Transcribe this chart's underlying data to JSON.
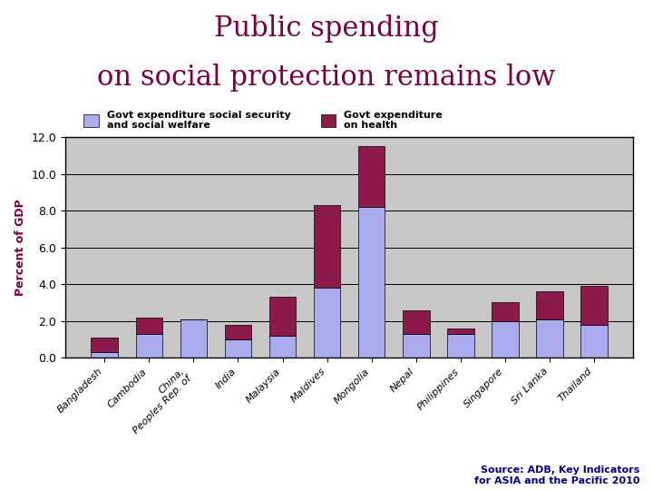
{
  "title_line1": "Public spending",
  "title_line2": "on social protection remains low",
  "title_color": "#7B0045",
  "ylabel": "Percent of GDP",
  "categories": [
    "Bangladesh",
    "Cambodia",
    "China,\nPeoples Rep. of",
    "India",
    "Malaysia",
    "Maldives",
    "Mongolia",
    "Nepal",
    "Philippines",
    "Singapore",
    "Sri Lanka",
    "Thailand"
  ],
  "social_welfare": [
    0.3,
    1.3,
    2.1,
    1.0,
    1.2,
    3.8,
    8.2,
    1.3,
    1.3,
    2.0,
    2.1,
    1.8
  ],
  "health": [
    0.8,
    0.9,
    0.0,
    0.8,
    2.1,
    4.5,
    3.3,
    1.3,
    0.3,
    1.0,
    1.5,
    2.1
  ],
  "welfare_color": "#AAAAEE",
  "health_color": "#8B1A4A",
  "legend_welfare": "Govt expenditure social security\nand social welfare",
  "legend_health": "Govt expenditure\non health",
  "ylim": [
    0,
    12.0
  ],
  "yticks": [
    0.0,
    2.0,
    4.0,
    6.0,
    8.0,
    10.0,
    12.0
  ],
  "source_text": "Source: ADB, Key Indicators\nfor ASIA and the Pacific 2010",
  "source_color": "#00008B",
  "ylabel_color": "#7B0045",
  "bg_color": "#C8C8C8",
  "bar_width": 0.6
}
